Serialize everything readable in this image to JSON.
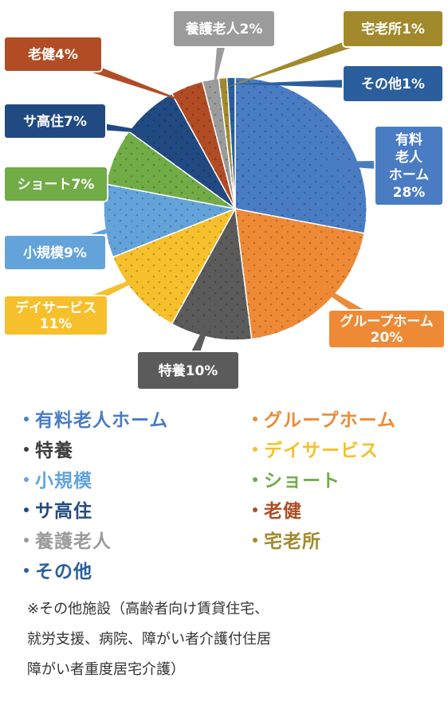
{
  "chart_data": {
    "type": "pie",
    "slices": [
      {
        "category": "有料老人ホーム",
        "label_lines": [
          "有料",
          "老人",
          "ホーム",
          "28%"
        ],
        "value": 28,
        "color": "#4A7CC4"
      },
      {
        "category": "グループホーム",
        "label_lines": [
          "グループホーム",
          "20%"
        ],
        "value": 20,
        "color": "#EE8A36"
      },
      {
        "category": "特養",
        "label_lines": [
          "特養10%"
        ],
        "value": 10,
        "color": "#5B5B5B"
      },
      {
        "category": "デイサービス",
        "label_lines": [
          "デイサービス",
          "11%"
        ],
        "value": 11,
        "color": "#F6C02C"
      },
      {
        "category": "小規模",
        "label_lines": [
          "小規模9%"
        ],
        "value": 9,
        "color": "#63A3DA"
      },
      {
        "category": "ショート",
        "label_lines": [
          "ショート7%"
        ],
        "value": 7,
        "color": "#71AC47"
      },
      {
        "category": "サ高住",
        "label_lines": [
          "サ高住7%"
        ],
        "value": 7,
        "color": "#224A82"
      },
      {
        "category": "老健",
        "label_lines": [
          "老健4%"
        ],
        "value": 4,
        "color": "#B14C24"
      },
      {
        "category": "養護老人",
        "label_lines": [
          "養護老人2%"
        ],
        "value": 2,
        "color": "#9B9B9B"
      },
      {
        "category": "宅老所",
        "label_lines": [
          "宅老所1%"
        ],
        "value": 1,
        "color": "#A28A2C"
      },
      {
        "category": "その他",
        "label_lines": [
          "その他1%"
        ],
        "value": 1,
        "color": "#2B5E9C"
      }
    ],
    "legend": [
      {
        "label": "有料老人ホーム",
        "color": "#4A7CC4"
      },
      {
        "label": "グループホーム",
        "color": "#EE8A36"
      },
      {
        "label": "特養",
        "color": "#3D3D3D"
      },
      {
        "label": "デイサービス",
        "color": "#F6C02C"
      },
      {
        "label": "小規模",
        "color": "#63A3DA"
      },
      {
        "label": "ショート",
        "color": "#71AC47"
      },
      {
        "label": "サ高住",
        "color": "#224A82"
      },
      {
        "label": "老健",
        "color": "#B14C24"
      },
      {
        "label": "養護老人",
        "color": "#9B9B9B"
      },
      {
        "label": "宅老所",
        "color": "#A28A2C"
      },
      {
        "label": "その他",
        "color": "#2B5E9C"
      }
    ],
    "legend_placement": "bottom"
  },
  "note": {
    "lines": [
      "※その他施設（高齢者向け賃貸住宅、",
      "就労支援、病院、障がい者介護付住居",
      "障がい者重度居宅介護）"
    ]
  }
}
